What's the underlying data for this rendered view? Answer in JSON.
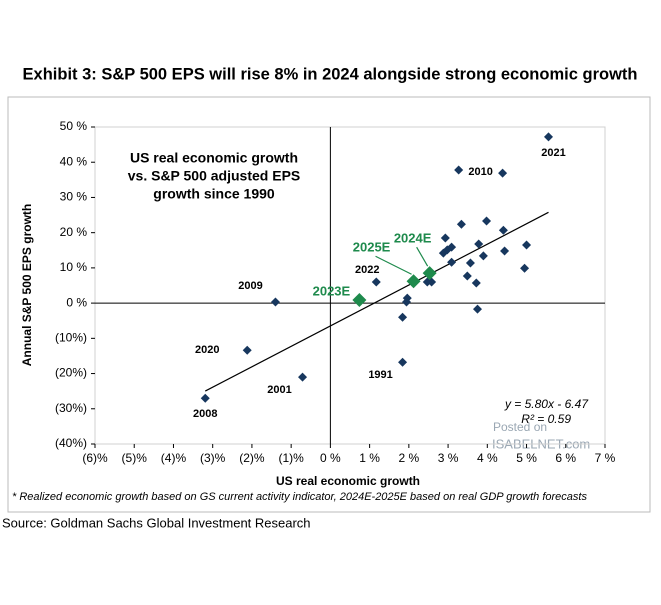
{
  "chart_data": {
    "type": "scatter",
    "title": "Exhibit 3: S&P 500 EPS will rise 8% in 2024 alongside strong economic growth",
    "inset_text": [
      "US real economic growth",
      "vs. S&P 500 adjusted EPS",
      "growth since 1990"
    ],
    "x_label": "US real economic growth",
    "y_label": "Annual S&P 500 EPS growth",
    "xlim": [
      -6,
      7
    ],
    "ylim": [
      -40,
      50
    ],
    "xticks": [
      {
        "value": -6,
        "label": "(6)%"
      },
      {
        "value": -5,
        "label": "(5)%"
      },
      {
        "value": -4,
        "label": "(4)%"
      },
      {
        "value": -3,
        "label": "(3)%"
      },
      {
        "value": -2,
        "label": "(2)%"
      },
      {
        "value": -1,
        "label": "(1)%"
      },
      {
        "value": 0,
        "label": "0 %"
      },
      {
        "value": 1,
        "label": "1 %"
      },
      {
        "value": 2,
        "label": "2 %"
      },
      {
        "value": 3,
        "label": "3 %"
      },
      {
        "value": 4,
        "label": "4 %"
      },
      {
        "value": 5,
        "label": "5 %"
      },
      {
        "value": 6,
        "label": "6 %"
      },
      {
        "value": 7,
        "label": "7 %"
      }
    ],
    "yticks": [
      {
        "value": 50,
        "label": "50 %"
      },
      {
        "value": 40,
        "label": "40 %"
      },
      {
        "value": 30,
        "label": "30 %"
      },
      {
        "value": 20,
        "label": "20 %"
      },
      {
        "value": 10,
        "label": "10 %"
      },
      {
        "value": 0,
        "label": "0 %"
      },
      {
        "value": -10,
        "label": "(10%)"
      },
      {
        "value": -20,
        "label": "(20%)"
      },
      {
        "value": -30,
        "label": "(30%)"
      },
      {
        "value": -40,
        "label": "(40%)"
      }
    ],
    "series": [
      {
        "color": "#17375e",
        "x": [
          5.56,
          3.27,
          4.39,
          3.34,
          3.98,
          4.41,
          2.93,
          3.78,
          5.0,
          3.09,
          2.98,
          2.88,
          4.44,
          3.9,
          3.57,
          3.09,
          4.95,
          3.49,
          2.58,
          2.47,
          3.72,
          1.17,
          1.96,
          1.94,
          1.84,
          3.75,
          -1.4,
          -2.12,
          -0.71,
          1.84,
          -3.19
        ],
        "values": [
          47.2,
          37.8,
          36.9,
          22.4,
          23.3,
          20.7,
          18.5,
          16.8,
          16.5,
          15.9,
          15.1,
          14.2,
          14.8,
          13.4,
          11.4,
          11.6,
          9.9,
          7.7,
          6.0,
          6.0,
          5.7,
          6.0,
          1.4,
          0.3,
          -4.0,
          -1.7,
          0.3,
          -13.4,
          -21.0,
          -16.8,
          -27.0
        ],
        "labels": [
          "2021",
          "2010",
          null,
          null,
          null,
          null,
          null,
          null,
          null,
          null,
          null,
          null,
          null,
          null,
          null,
          null,
          null,
          null,
          null,
          null,
          null,
          "2022",
          null,
          null,
          null,
          null,
          "2009",
          "2020",
          "2001",
          "1991",
          "2008"
        ]
      },
      {
        "color": "#1e8a4c",
        "x": [
          0.74,
          2.12,
          2.53
        ],
        "values": [
          0.9,
          6.2,
          8.5
        ],
        "labels": [
          "2023E",
          "2025E",
          "2024E"
        ]
      }
    ],
    "trendline": {
      "equation": "y = 5.80x - 6.47",
      "r2": "R² = 0.59",
      "slope": 5.8,
      "intercept": -6.47,
      "color": "#000000"
    },
    "footnote": "* Realized economic growth based on GS current activity indicator, 2024E-2025E based on real GDP growth forecasts",
    "source": "Source: Goldman Sachs Global Investment Research",
    "watermark": [
      "Posted on",
      "ISABELNET.com"
    ]
  }
}
